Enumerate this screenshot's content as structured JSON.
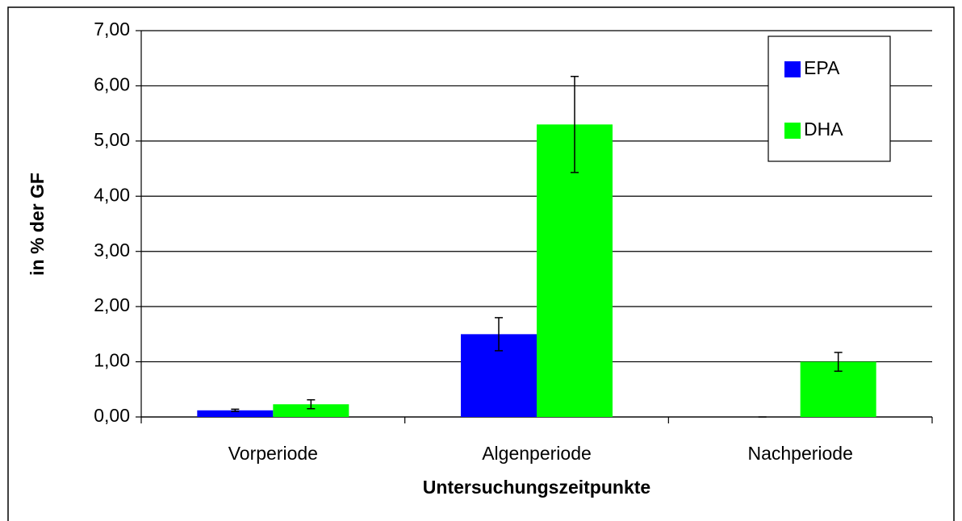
{
  "chart_data": {
    "type": "bar",
    "x_label": "Untersuchungszeitpunkte",
    "y_label": "in % der GF",
    "categories": [
      "Vorperiode",
      "Algenperiode",
      "Nachperiode"
    ],
    "series": [
      {
        "name": "EPA",
        "color": "#0000ff",
        "values": [
          0.12,
          1.5,
          0
        ],
        "errors": [
          0.02,
          0.3,
          0
        ]
      },
      {
        "name": "DHA",
        "color": "#00ff00",
        "values": [
          0.23,
          5.3,
          1.0
        ],
        "errors": [
          0.08,
          0.87,
          0.17
        ]
      }
    ],
    "ylim": [
      0,
      7
    ],
    "yticks": [
      {
        "value": 0,
        "label": "0,00"
      },
      {
        "value": 1,
        "label": "1,00"
      },
      {
        "value": 2,
        "label": "2,00"
      },
      {
        "value": 3,
        "label": "3,00"
      },
      {
        "value": 4,
        "label": "4,00"
      },
      {
        "value": 5,
        "label": "5,00"
      },
      {
        "value": 6,
        "label": "6,00"
      },
      {
        "value": 7,
        "label": "7,00"
      }
    ],
    "grid": true,
    "legend": "upper right"
  }
}
